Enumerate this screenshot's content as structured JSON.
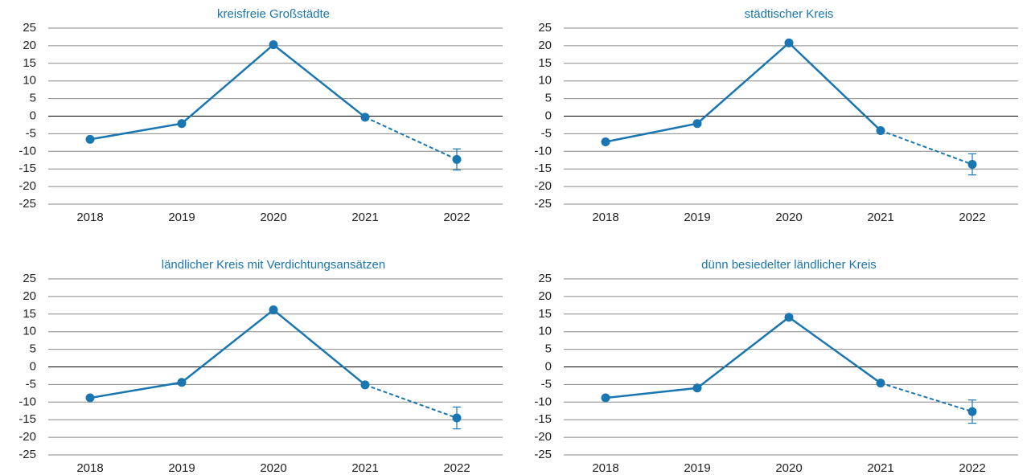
{
  "chart_data": [
    {
      "type": "line",
      "title": "kreisfreie Großstädte",
      "categories": [
        "2018",
        "2019",
        "2020",
        "2021",
        "2022"
      ],
      "series": [
        {
          "color": "#1a76b0",
          "values": [
            -6.6,
            -2.1,
            20.3,
            -0.3,
            -12.3
          ],
          "errors": [
            null,
            null,
            null,
            null,
            3
          ]
        }
      ],
      "dashed_last_segment": true,
      "ylim": [
        -25,
        25
      ],
      "yticks": [
        -25,
        -20,
        -15,
        -10,
        -5,
        0,
        5,
        10,
        15,
        20,
        25
      ],
      "grid": true
    },
    {
      "type": "line",
      "title": "städtischer Kreis",
      "categories": [
        "2018",
        "2019",
        "2020",
        "2021",
        "2022"
      ],
      "series": [
        {
          "color": "#1a76b0",
          "values": [
            -7.3,
            -2.1,
            20.8,
            -4.1,
            -13.7
          ],
          "errors": [
            null,
            null,
            null,
            null,
            3
          ]
        }
      ],
      "dashed_last_segment": true,
      "ylim": [
        -25,
        25
      ],
      "yticks": [
        -25,
        -20,
        -15,
        -10,
        -5,
        0,
        5,
        10,
        15,
        20,
        25
      ],
      "grid": true
    },
    {
      "type": "line",
      "title": "ländlicher Kreis mit Verdichtungsansätzen",
      "categories": [
        "2018",
        "2019",
        "2020",
        "2021",
        "2022"
      ],
      "series": [
        {
          "color": "#1a76b0",
          "values": [
            -8.8,
            -4.4,
            16.2,
            -5.1,
            -14.5
          ],
          "errors": [
            null,
            null,
            null,
            null,
            3.1
          ]
        }
      ],
      "dashed_last_segment": true,
      "ylim": [
        -25,
        25
      ],
      "yticks": [
        -25,
        -20,
        -15,
        -10,
        -5,
        0,
        5,
        10,
        15,
        20,
        25
      ],
      "grid": true
    },
    {
      "type": "line",
      "title": "dünn besiedelter ländlicher Kreis",
      "categories": [
        "2018",
        "2019",
        "2020",
        "2021",
        "2022"
      ],
      "series": [
        {
          "color": "#1a76b0",
          "values": [
            -8.8,
            -6,
            14.1,
            -4.6,
            -12.7
          ],
          "errors": [
            null,
            null,
            null,
            null,
            3.3
          ]
        }
      ],
      "dashed_last_segment": true,
      "ylim": [
        -25,
        25
      ],
      "yticks": [
        -25,
        -20,
        -15,
        -10,
        -5,
        0,
        5,
        10,
        15,
        20,
        25
      ],
      "grid": true
    }
  ]
}
